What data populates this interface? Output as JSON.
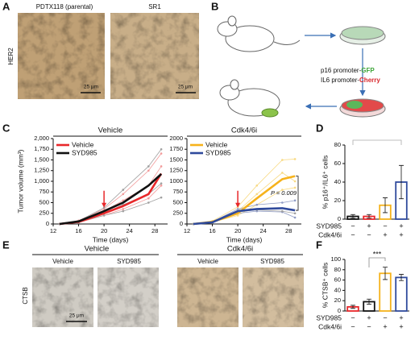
{
  "panel_labels": [
    "A",
    "B",
    "C",
    "D",
    "E",
    "F"
  ],
  "panel_a": {
    "image_titles": [
      "PDTX118 (parental)",
      "SR1"
    ],
    "stain": "HER2",
    "scale_bar": "25 μm"
  },
  "panel_b": {
    "lines": [
      {
        "text": "p16 promoter-",
        "highlight": "GFP",
        "color": "#3aa335"
      },
      {
        "text": "IL6 promoter-",
        "highlight": "Cherry",
        "color": "#d7262b"
      }
    ]
  },
  "panel_e": {
    "group_titles": [
      "Vehicle",
      "Cdk4/6i"
    ],
    "image_labels": [
      "Vehicle",
      "SYD985",
      "Vehicle",
      "SYD985"
    ],
    "stain": "CTSB",
    "scale_bar": "25 μm"
  },
  "chart_data": [
    {
      "type": "line",
      "title": "Vehicle",
      "ylabel": "Tumor volume (mm³)",
      "xlabel": "Time (days)",
      "x": [
        13,
        16,
        20,
        23,
        27,
        29
      ],
      "series": [
        {
          "name": "Vehicle",
          "color": "#e8272a",
          "values": [
            0,
            50,
            250,
            420,
            700,
            1180
          ]
        },
        {
          "name": "SYD985",
          "color": "#111111",
          "values": [
            0,
            60,
            300,
            500,
            900,
            1170
          ]
        }
      ],
      "individual_series": [
        {
          "color": "#f29a9a",
          "values": [
            0,
            80,
            350,
            700,
            1250,
            1650
          ]
        },
        {
          "color": "#f29a9a",
          "values": [
            0,
            30,
            200,
            350,
            600,
            900
          ]
        },
        {
          "color": "#f29a9a",
          "values": [
            0,
            60,
            300,
            550,
            900,
            1350
          ]
        },
        {
          "color": "#a0a0a0",
          "values": [
            0,
            70,
            380,
            800,
            1350,
            1750
          ]
        },
        {
          "color": "#a0a0a0",
          "values": [
            0,
            40,
            250,
            450,
            700,
            950
          ]
        },
        {
          "color": "#a0a0a0",
          "values": [
            0,
            50,
            200,
            300,
            500,
            620
          ]
        }
      ],
      "treatment_day": 20,
      "xlim": [
        12,
        30
      ],
      "xticks": [
        12,
        16,
        20,
        24,
        28
      ],
      "ylim": [
        0,
        2000
      ],
      "yticks": [
        0,
        250,
        500,
        750,
        {
          "value": 1000,
          "label": "1,000"
        },
        {
          "value": 1250,
          "label": "1,250"
        },
        {
          "value": 1500,
          "label": "1,500"
        },
        {
          "value": 1750,
          "label": "1,750"
        },
        {
          "value": 2000,
          "label": "2,000"
        }
      ],
      "legend": "upper left"
    },
    {
      "type": "line",
      "title": "Cdk4/6i",
      "xlabel": "Time (days)",
      "x": [
        13,
        16,
        20,
        23,
        27,
        29
      ],
      "series": [
        {
          "name": "Vehicle",
          "color": "#f6b21b",
          "values": [
            0,
            50,
            250,
            600,
            1050,
            1120
          ]
        },
        {
          "name": "SYD985",
          "color": "#2f4a9c",
          "values": [
            0,
            40,
            300,
            350,
            370,
            320
          ]
        }
      ],
      "individual_series": [
        {
          "color": "#f8da84",
          "values": [
            0,
            70,
            400,
            900,
            1500,
            1520
          ]
        },
        {
          "color": "#f8da84",
          "values": [
            0,
            40,
            200,
            450,
            800,
            850
          ]
        },
        {
          "color": "#f8da84",
          "values": [
            0,
            60,
            300,
            700,
            1200,
            1000
          ]
        },
        {
          "color": "#8f9bc4",
          "values": [
            0,
            50,
            350,
            450,
            500,
            550
          ]
        },
        {
          "color": "#8f9bc4",
          "values": [
            0,
            30,
            250,
            300,
            280,
            150
          ]
        },
        {
          "color": "#a0a0a0",
          "values": [
            0,
            40,
            280,
            330,
            300,
            250
          ]
        }
      ],
      "treatment_day": 20,
      "annotation": "P = 0.009",
      "xlim": [
        12,
        30
      ],
      "xticks": [
        12,
        16,
        20,
        24,
        28
      ],
      "ylim": [
        0,
        2000
      ],
      "yticks": [
        0,
        250,
        500,
        750,
        1000,
        1250,
        1500,
        1750,
        2000
      ],
      "legend": "upper left"
    },
    {
      "type": "bar",
      "ylabel": "% p16⁺/IL6⁺ cells",
      "values": [
        3,
        3,
        15,
        40
      ],
      "errors": [
        2,
        2,
        8,
        18
      ],
      "colors": [
        "#111111",
        "#e8272a",
        "#f6b21b",
        "#2f4a9c"
      ],
      "conditions": [
        {
          "name": "SYD985",
          "signs": [
            "−",
            "+",
            "−",
            "+"
          ]
        },
        {
          "name": "Cdk4/6i",
          "signs": [
            "−",
            "−",
            "+",
            "+"
          ]
        }
      ],
      "ylim": [
        0,
        80
      ],
      "yticks": [
        0,
        20,
        40,
        60,
        80
      ]
    },
    {
      "type": "bar",
      "ylabel": "% CTSB⁺ cells",
      "annotation": "***",
      "values": [
        8,
        18,
        73,
        65
      ],
      "errors": [
        3,
        5,
        12,
        6
      ],
      "colors": [
        "#e8272a",
        "#111111",
        "#f6b21b",
        "#2f4a9c"
      ],
      "conditions": [
        {
          "name": "SYD985",
          "signs": [
            "−",
            "+",
            "−",
            "+"
          ]
        },
        {
          "name": "Cdk4/6i",
          "signs": [
            "−",
            "−",
            "+",
            "+"
          ]
        }
      ],
      "ylim": [
        0,
        100
      ],
      "yticks": [
        0,
        20,
        40,
        60,
        80,
        100
      ]
    }
  ]
}
